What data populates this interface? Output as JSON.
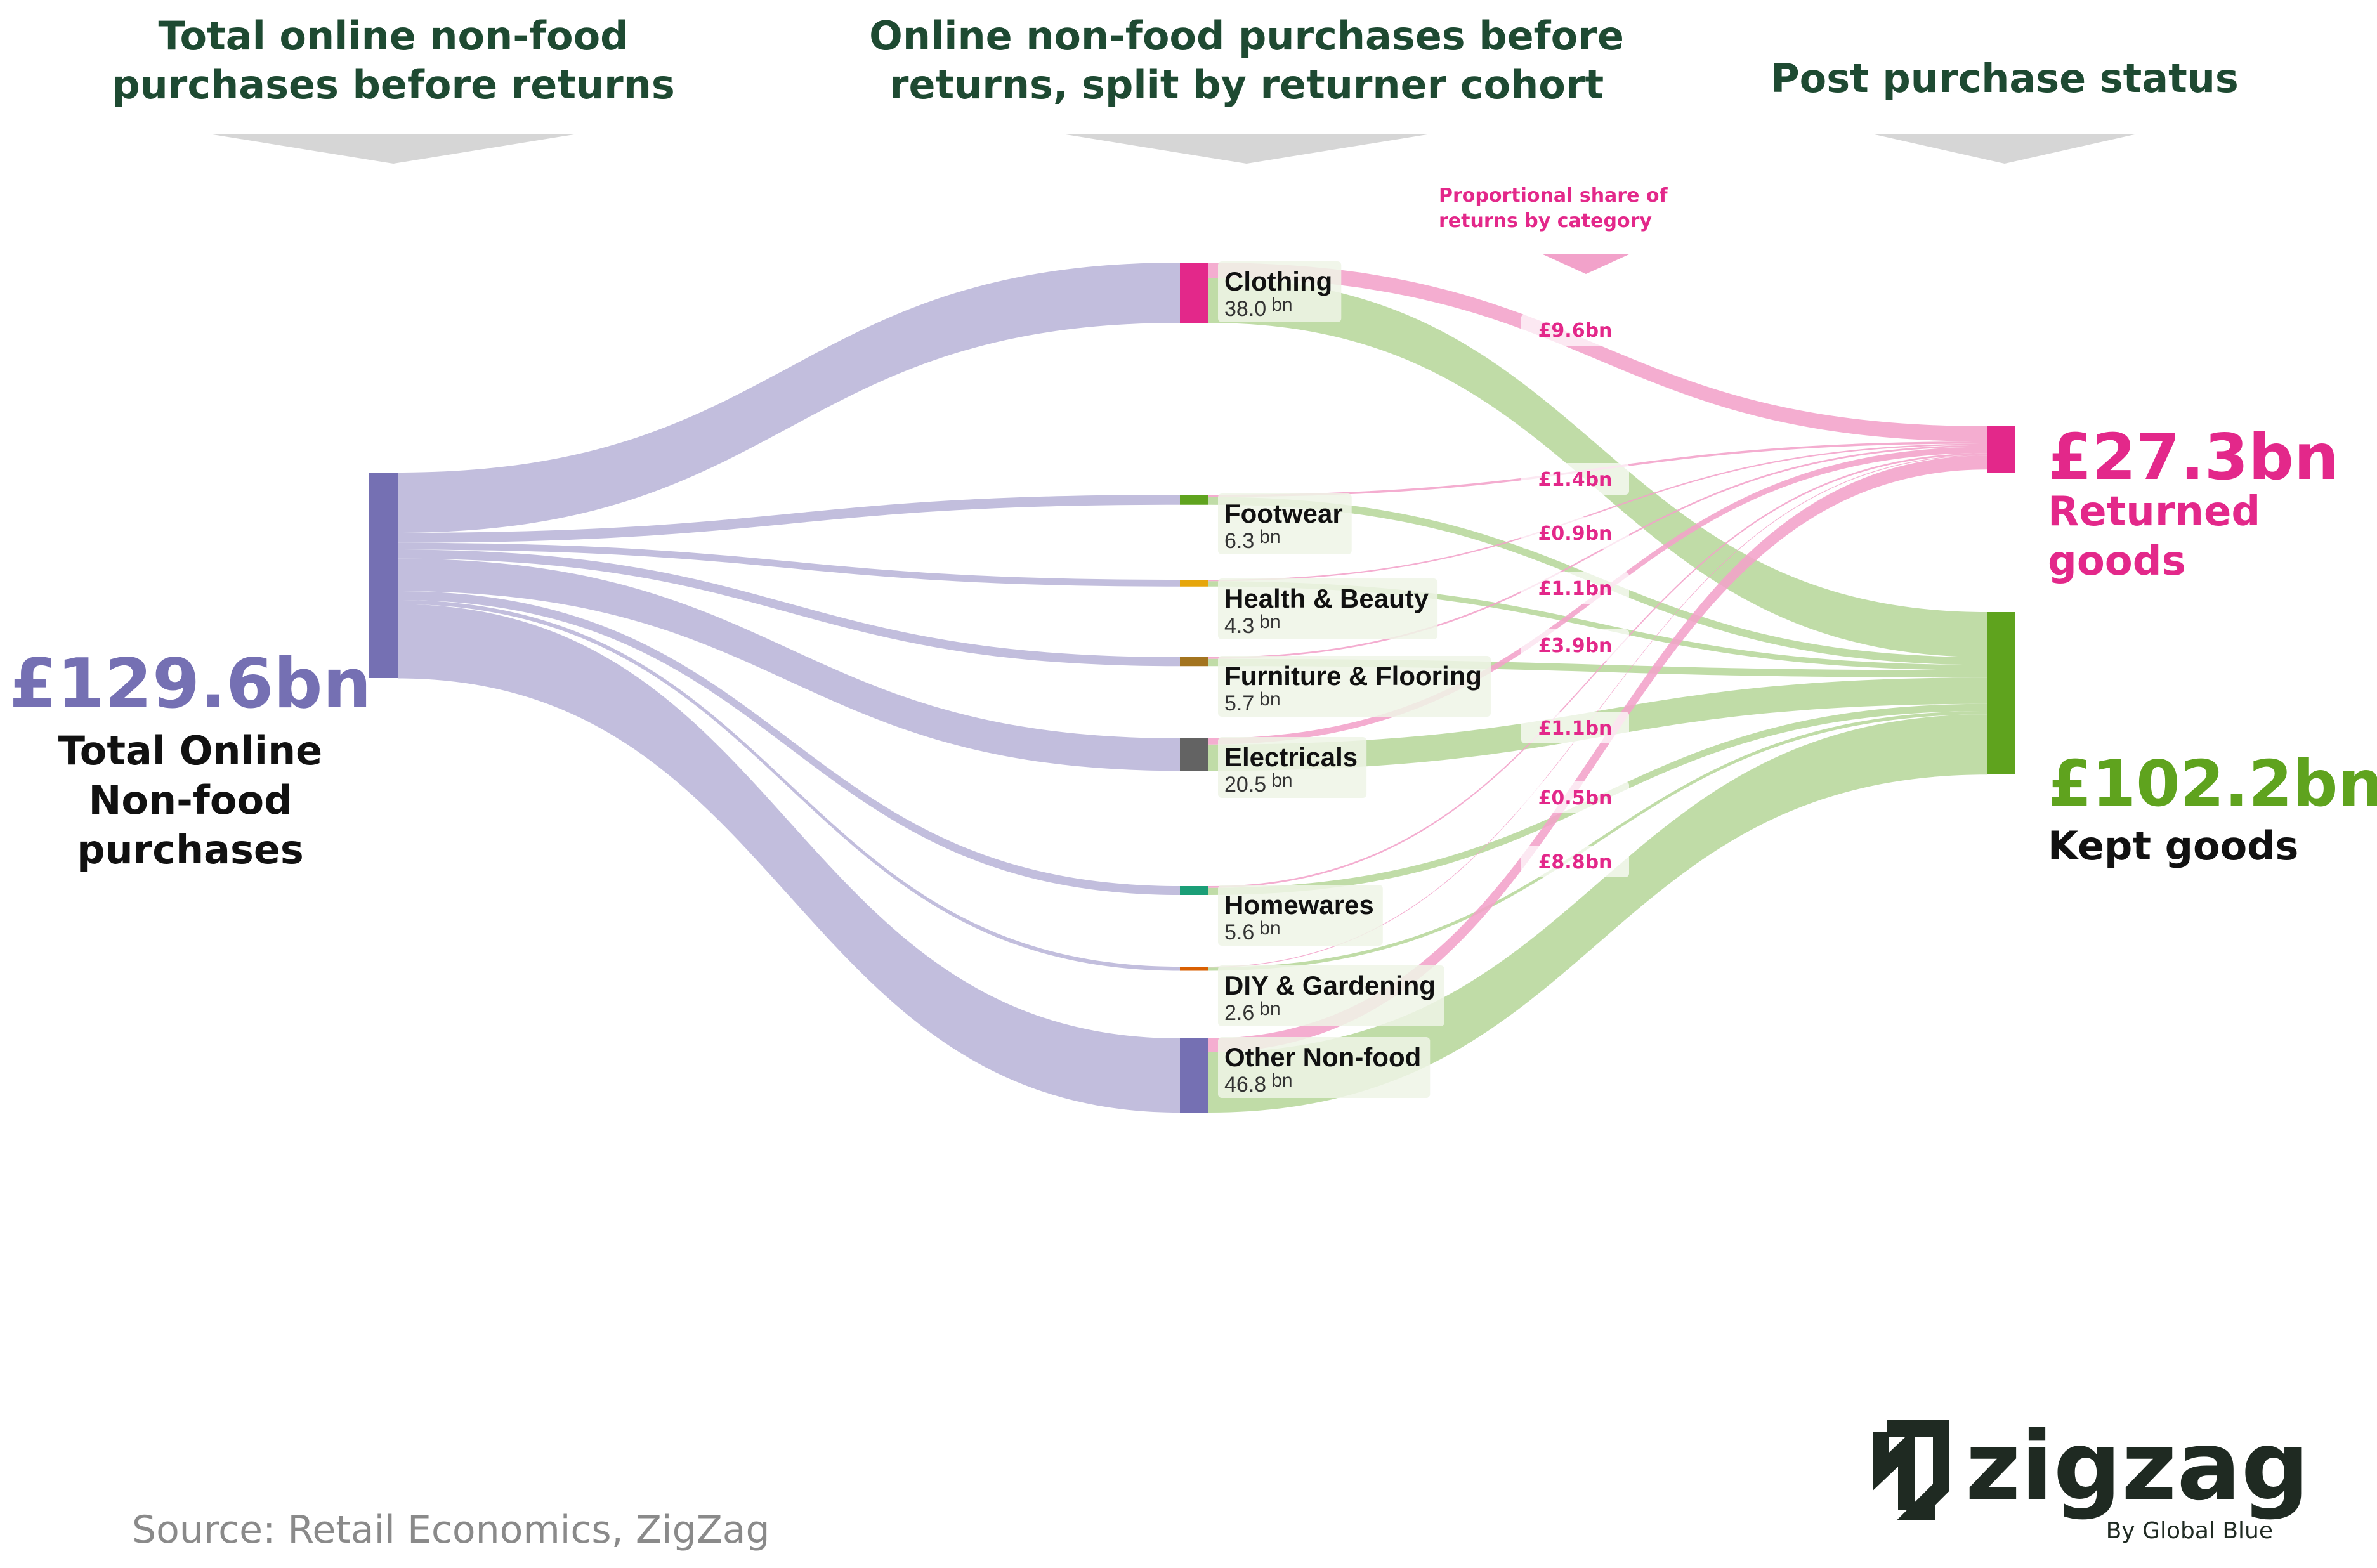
{
  "headers": {
    "col1_line1": "Total online non-food",
    "col1_line2": "purchases before returns",
    "col2_line1": "Online non-food purchases before",
    "col2_line2": "returns, split by returner cohort",
    "col3": "Post purchase status"
  },
  "annotation": {
    "line1": "Proportional share of",
    "line2": "returns by category"
  },
  "left_total": {
    "value": "£129.6bn",
    "line1": "Total Online",
    "line2": "Non-food",
    "line3": "purchases"
  },
  "returned": {
    "value": "£27.3bn",
    "line1": "Returned",
    "line2": "goods"
  },
  "kept": {
    "value": "£102.2bn",
    "line1": "Kept goods"
  },
  "source": "Source: Retail Economics, ZigZag",
  "logo": {
    "name": "zigzag",
    "tagline": "By Global Blue"
  },
  "colors": {
    "header_text": "#1e4a32",
    "total": "#7570b3",
    "total_flow": "#c2bedd",
    "returned": "#e3288a",
    "returned_flow": "#f2a2ca",
    "kept": "#5fa31e",
    "kept_flow": "#bbd99f",
    "source_text": "#8a8a8a"
  },
  "chart_data": {
    "type": "sankey",
    "unit": "bn",
    "total": 129.6,
    "returned_total": 27.3,
    "kept_total": 102.2,
    "categories": [
      {
        "name": "Clothing",
        "value": 38.0,
        "value_label": "38.0",
        "returned": 9.6,
        "returned_label": "£9.6bn",
        "color": "#e3288a"
      },
      {
        "name": "Footwear",
        "value": 6.3,
        "value_label": "6.3",
        "returned": 1.4,
        "returned_label": "£1.4bn",
        "color": "#5fa31e"
      },
      {
        "name": "Health & Beauty",
        "value": 4.3,
        "value_label": "4.3",
        "returned": 0.9,
        "returned_label": "£0.9bn",
        "color": "#e6a60c"
      },
      {
        "name": "Furniture & Flooring",
        "value": 5.7,
        "value_label": "5.7",
        "returned": 1.1,
        "returned_label": "£1.1bn",
        "color": "#a3741f"
      },
      {
        "name": "Electricals",
        "value": 20.5,
        "value_label": "20.5",
        "returned": 3.9,
        "returned_label": "£3.9bn",
        "color": "#636363"
      },
      {
        "name": "Homewares",
        "value": 5.6,
        "value_label": "5.6",
        "returned": 1.1,
        "returned_label": "£1.1bn",
        "color": "#1b9e77"
      },
      {
        "name": "DIY & Gardening",
        "value": 2.6,
        "value_label": "2.6",
        "returned": 0.5,
        "returned_label": "£0.5bn",
        "color": "#d95f02"
      },
      {
        "name": "Other Non-food",
        "value": 46.8,
        "value_label": "46.8",
        "returned": 8.8,
        "returned_label": "£8.8bn",
        "color": "#7570b3"
      }
    ]
  }
}
